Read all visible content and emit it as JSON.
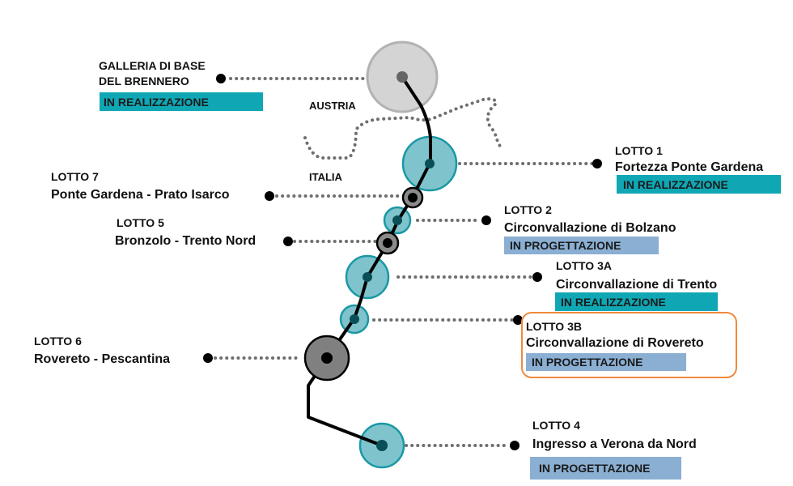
{
  "colors": {
    "realizzazione": "#10a7b5",
    "progettazione": "#8aafd3",
    "teal_fill": "#7fc4cd",
    "teal_stroke": "#1a98a5",
    "teal_dot": "#0b4f56",
    "highlight_border": "#ef8a3c"
  },
  "countries": {
    "north": "AUSTRIA",
    "south": "ITALIA"
  },
  "lots": {
    "brennero": {
      "line1": "GALLERIA DI BASE",
      "line2": "DEL BRENNERO",
      "status": "IN REALIZZAZIONE"
    },
    "lotto1": {
      "title": "LOTTO 1",
      "name": "Fortezza Ponte Gardena",
      "status": "IN REALIZZAZIONE"
    },
    "lotto7": {
      "title": "LOTTO 7",
      "name": "Ponte Gardena - Prato Isarco"
    },
    "lotto2": {
      "title": "LOTTO 2",
      "name": "Circonvallazione di Bolzano",
      "status": "IN PROGETTAZIONE"
    },
    "lotto5": {
      "title": "LOTTO 5",
      "name": "Bronzolo - Trento Nord"
    },
    "lotto3a": {
      "title": "LOTTO 3A",
      "name": "Circonvallazione di Trento",
      "status": "IN REALIZZAZIONE"
    },
    "lotto3b": {
      "title": "LOTTO 3B",
      "name": "Circonvallazione di Rovereto",
      "status": "IN PROGETTAZIONE",
      "highlighted": true
    },
    "lotto6": {
      "title": "LOTTO 6",
      "name": "Rovereto - Pescantina"
    },
    "lotto4": {
      "title": "LOTTO 4",
      "name": "Ingresso a Verona da Nord",
      "status": "IN PROGETTAZIONE"
    }
  }
}
